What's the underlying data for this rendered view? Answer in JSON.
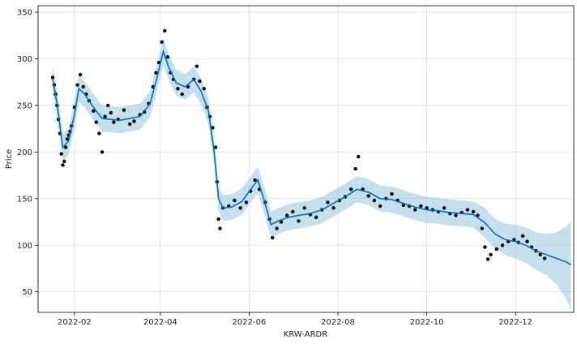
{
  "chart_data": {
    "type": "line",
    "title": "",
    "xlabel": "KRW-ARDR",
    "ylabel": "Price",
    "xlim": [
      "2022-01-07",
      "2023-01-10"
    ],
    "ylim": [
      28,
      357
    ],
    "grid": true,
    "x_ticks": [
      "2022-02",
      "2022-04",
      "2022-06",
      "2022-08",
      "2022-10",
      "2022-12"
    ],
    "y_ticks": [
      50,
      100,
      150,
      200,
      250,
      300,
      350
    ],
    "colors": {
      "forecast_line": "#0072b2",
      "uncertainty_band": "#9ecae1",
      "observed_points": "#000000",
      "grid": "#dddddd",
      "axes": "#000000"
    },
    "series": [
      {
        "role": "observed",
        "marker": "dot",
        "points": [
          [
            "2022-01-17",
            280
          ],
          [
            "2022-01-18",
            272
          ],
          [
            "2022-01-19",
            262
          ],
          [
            "2022-01-20",
            250
          ],
          [
            "2022-01-21",
            235
          ],
          [
            "2022-01-22",
            220
          ],
          [
            "2022-01-23",
            198
          ],
          [
            "2022-01-24",
            186
          ],
          [
            "2022-01-25",
            190
          ],
          [
            "2022-01-26",
            205
          ],
          [
            "2022-01-27",
            214
          ],
          [
            "2022-01-28",
            218
          ],
          [
            "2022-01-29",
            222
          ],
          [
            "2022-01-30",
            228
          ],
          [
            "2022-02-01",
            248
          ],
          [
            "2022-02-03",
            272
          ],
          [
            "2022-02-05",
            283
          ],
          [
            "2022-02-07",
            270
          ],
          [
            "2022-02-09",
            262
          ],
          [
            "2022-02-11",
            255
          ],
          [
            "2022-02-14",
            244
          ],
          [
            "2022-02-16",
            232
          ],
          [
            "2022-02-18",
            220
          ],
          [
            "2022-02-20",
            200
          ],
          [
            "2022-02-22",
            238
          ],
          [
            "2022-02-24",
            250
          ],
          [
            "2022-02-26",
            242
          ],
          [
            "2022-02-28",
            232
          ],
          [
            "2022-03-03",
            235
          ],
          [
            "2022-03-07",
            245
          ],
          [
            "2022-03-11",
            230
          ],
          [
            "2022-03-14",
            233
          ],
          [
            "2022-03-18",
            240
          ],
          [
            "2022-03-21",
            243
          ],
          [
            "2022-03-24",
            252
          ],
          [
            "2022-03-27",
            270
          ],
          [
            "2022-03-29",
            285
          ],
          [
            "2022-03-31",
            296
          ],
          [
            "2022-04-02",
            318
          ],
          [
            "2022-04-04",
            330
          ],
          [
            "2022-04-06",
            302
          ],
          [
            "2022-04-08",
            285
          ],
          [
            "2022-04-10",
            278
          ],
          [
            "2022-04-13",
            268
          ],
          [
            "2022-04-16",
            262
          ],
          [
            "2022-04-20",
            270
          ],
          [
            "2022-04-24",
            278
          ],
          [
            "2022-04-26",
            292
          ],
          [
            "2022-04-28",
            276
          ],
          [
            "2022-05-01",
            268
          ],
          [
            "2022-05-03",
            248
          ],
          [
            "2022-05-05",
            238
          ],
          [
            "2022-05-07",
            226
          ],
          [
            "2022-05-09",
            205
          ],
          [
            "2022-05-10",
            168
          ],
          [
            "2022-05-11",
            128
          ],
          [
            "2022-05-12",
            118
          ],
          [
            "2022-05-14",
            140
          ],
          [
            "2022-05-18",
            142
          ],
          [
            "2022-05-22",
            148
          ],
          [
            "2022-05-26",
            140
          ],
          [
            "2022-05-30",
            146
          ],
          [
            "2022-06-02",
            158
          ],
          [
            "2022-06-05",
            170
          ],
          [
            "2022-06-08",
            160
          ],
          [
            "2022-06-12",
            146
          ],
          [
            "2022-06-15",
            128
          ],
          [
            "2022-06-17",
            108
          ],
          [
            "2022-06-20",
            118
          ],
          [
            "2022-06-23",
            125
          ],
          [
            "2022-06-27",
            132
          ],
          [
            "2022-07-01",
            136
          ],
          [
            "2022-07-05",
            126
          ],
          [
            "2022-07-09",
            140
          ],
          [
            "2022-07-13",
            133
          ],
          [
            "2022-07-17",
            130
          ],
          [
            "2022-07-21",
            138
          ],
          [
            "2022-07-25",
            146
          ],
          [
            "2022-07-29",
            140
          ],
          [
            "2022-08-02",
            148
          ],
          [
            "2022-08-06",
            152
          ],
          [
            "2022-08-10",
            160
          ],
          [
            "2022-08-13",
            182
          ],
          [
            "2022-08-15",
            195
          ],
          [
            "2022-08-18",
            160
          ],
          [
            "2022-08-22",
            153
          ],
          [
            "2022-08-26",
            148
          ],
          [
            "2022-08-30",
            142
          ],
          [
            "2022-09-03",
            150
          ],
          [
            "2022-09-07",
            155
          ],
          [
            "2022-09-11",
            148
          ],
          [
            "2022-09-15",
            143
          ],
          [
            "2022-09-19",
            142
          ],
          [
            "2022-09-23",
            138
          ],
          [
            "2022-09-27",
            142
          ],
          [
            "2022-10-01",
            140
          ],
          [
            "2022-10-05",
            138
          ],
          [
            "2022-10-09",
            136
          ],
          [
            "2022-10-13",
            140
          ],
          [
            "2022-10-17",
            134
          ],
          [
            "2022-10-21",
            132
          ],
          [
            "2022-10-25",
            135
          ],
          [
            "2022-10-29",
            138
          ],
          [
            "2022-11-02",
            136
          ],
          [
            "2022-11-05",
            132
          ],
          [
            "2022-11-08",
            118
          ],
          [
            "2022-11-10",
            98
          ],
          [
            "2022-11-12",
            85
          ],
          [
            "2022-11-14",
            90
          ],
          [
            "2022-11-18",
            96
          ],
          [
            "2022-11-22",
            100
          ],
          [
            "2022-11-26",
            104
          ],
          [
            "2022-11-30",
            106
          ],
          [
            "2022-12-03",
            103
          ],
          [
            "2022-12-06",
            110
          ],
          [
            "2022-12-09",
            104
          ],
          [
            "2022-12-12",
            98
          ],
          [
            "2022-12-15",
            94
          ],
          [
            "2022-12-18",
            90
          ],
          [
            "2022-12-21",
            86
          ]
        ]
      },
      {
        "role": "forecast",
        "points": [
          [
            "2022-01-17",
            278,
            262,
            292
          ],
          [
            "2022-01-20",
            252,
            238,
            266
          ],
          [
            "2022-01-24",
            205,
            190,
            220
          ],
          [
            "2022-01-28",
            212,
            198,
            226
          ],
          [
            "2022-02-01",
            240,
            226,
            254
          ],
          [
            "2022-02-04",
            268,
            254,
            282
          ],
          [
            "2022-02-08",
            262,
            248,
            276
          ],
          [
            "2022-02-14",
            248,
            234,
            262
          ],
          [
            "2022-02-20",
            236,
            222,
            250
          ],
          [
            "2022-02-26",
            235,
            221,
            249
          ],
          [
            "2022-03-04",
            234,
            220,
            248
          ],
          [
            "2022-03-11",
            236,
            222,
            250
          ],
          [
            "2022-03-18",
            238,
            224,
            252
          ],
          [
            "2022-03-25",
            252,
            238,
            266
          ],
          [
            "2022-03-30",
            282,
            268,
            296
          ],
          [
            "2022-04-03",
            308,
            294,
            322
          ],
          [
            "2022-04-07",
            290,
            276,
            304
          ],
          [
            "2022-04-12",
            274,
            260,
            288
          ],
          [
            "2022-04-18",
            270,
            256,
            284
          ],
          [
            "2022-04-24",
            278,
            264,
            292
          ],
          [
            "2022-04-29",
            265,
            251,
            279
          ],
          [
            "2022-05-04",
            244,
            230,
            258
          ],
          [
            "2022-05-08",
            200,
            186,
            214
          ],
          [
            "2022-05-11",
            150,
            136,
            164
          ],
          [
            "2022-05-14",
            140,
            126,
            154
          ],
          [
            "2022-05-20",
            141,
            127,
            155
          ],
          [
            "2022-05-27",
            147,
            133,
            161
          ],
          [
            "2022-06-03",
            162,
            148,
            176
          ],
          [
            "2022-06-07",
            170,
            156,
            184
          ],
          [
            "2022-06-11",
            150,
            136,
            164
          ],
          [
            "2022-06-16",
            122,
            108,
            136
          ],
          [
            "2022-06-21",
            126,
            112,
            140
          ],
          [
            "2022-06-28",
            130,
            116,
            144
          ],
          [
            "2022-07-05",
            132,
            118,
            146
          ],
          [
            "2022-07-13",
            134,
            120,
            148
          ],
          [
            "2022-07-21",
            138,
            124,
            152
          ],
          [
            "2022-07-29",
            145,
            131,
            159
          ],
          [
            "2022-08-06",
            152,
            138,
            166
          ],
          [
            "2022-08-14",
            160,
            146,
            174
          ],
          [
            "2022-08-22",
            157,
            143,
            171
          ],
          [
            "2022-08-30",
            150,
            136,
            164
          ],
          [
            "2022-09-07",
            149,
            135,
            163
          ],
          [
            "2022-09-15",
            145,
            131,
            159
          ],
          [
            "2022-09-23",
            141,
            127,
            155
          ],
          [
            "2022-10-01",
            138,
            124,
            152
          ],
          [
            "2022-10-09",
            137,
            123,
            151
          ],
          [
            "2022-10-17",
            135,
            121,
            149
          ],
          [
            "2022-10-25",
            134,
            120,
            148
          ],
          [
            "2022-11-02",
            133,
            119,
            147
          ],
          [
            "2022-11-10",
            124,
            108,
            140
          ],
          [
            "2022-11-17",
            112,
            96,
            128
          ],
          [
            "2022-11-24",
            106,
            89,
            123
          ],
          [
            "2022-12-01",
            104,
            86,
            122
          ],
          [
            "2022-12-08",
            100,
            81,
            119
          ],
          [
            "2022-12-15",
            94,
            74,
            114
          ],
          [
            "2022-12-22",
            90,
            68,
            112
          ],
          [
            "2022-12-29",
            86,
            58,
            114
          ],
          [
            "2023-01-05",
            82,
            42,
            120
          ],
          [
            "2023-01-08",
            79,
            30,
            126
          ]
        ]
      }
    ]
  }
}
